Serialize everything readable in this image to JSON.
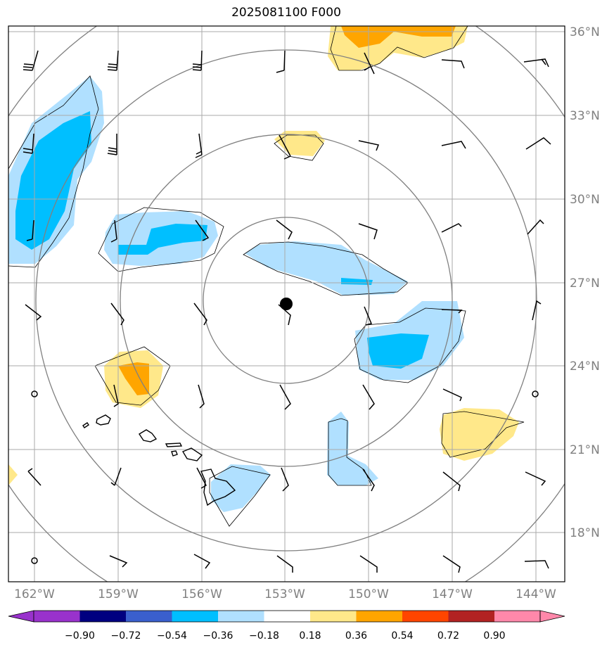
{
  "title": "2025081100 F000",
  "lat_labels": [
    "36°N",
    "33°N",
    "30°N",
    "27°N",
    "24°N",
    "21°N",
    "18°N"
  ],
  "lon_labels": [
    "162°W",
    "159°W",
    "156°W",
    "153°W",
    "150°W",
    "147°W",
    "144°W"
  ],
  "colorbar": {
    "ticks": [
      "−0.90",
      "−0.72",
      "−0.54",
      "−0.36",
      "−0.18",
      "0.18",
      "0.36",
      "0.54",
      "0.72",
      "0.90"
    ],
    "colors": [
      "#9932cc",
      "#000080",
      "#3a5fcd",
      "#00bfff",
      "#b0e0ff",
      "#ffffff",
      "#ffe88a",
      "#ffa500",
      "#ff4500",
      "#b22222",
      "#ff88aa"
    ]
  },
  "colors": {
    "grid": "#aaaaaa",
    "range_rings": "#808080",
    "light_blue": "#b0e0ff",
    "blue": "#00bfff",
    "light_yellow": "#ffe88a",
    "orange": "#ffa500"
  },
  "center_marker": {
    "lat": 26.3,
    "lon": -153.0
  }
}
